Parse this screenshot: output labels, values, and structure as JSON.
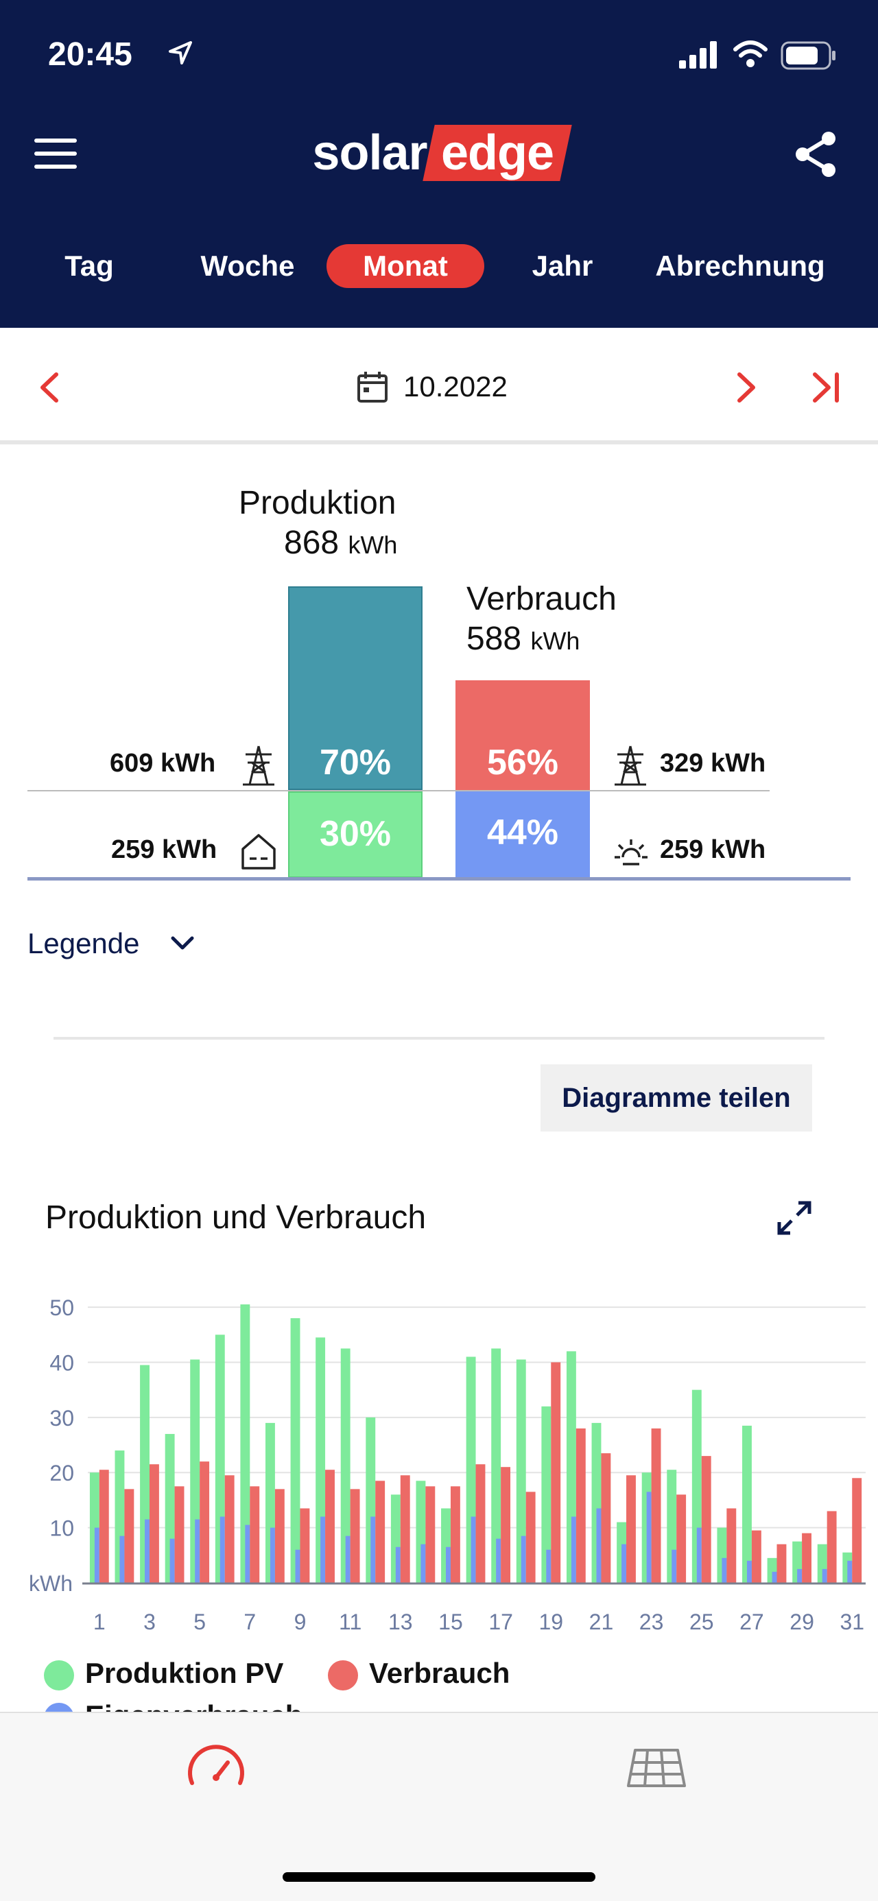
{
  "status": {
    "time": "20:45"
  },
  "header": {
    "logo_left": "solar",
    "logo_right": "edge"
  },
  "tabs": [
    {
      "label": "Tag",
      "active": false
    },
    {
      "label": "Woche",
      "active": false
    },
    {
      "label": "Monat",
      "active": true
    },
    {
      "label": "Jahr",
      "active": false
    },
    {
      "label": "Abrechnung",
      "active": false
    }
  ],
  "date_nav": {
    "date": "10.2022"
  },
  "summary": {
    "production": {
      "label": "Produktion",
      "value": "868",
      "unit": "kWh",
      "grid_pct": "70%",
      "self_pct": "30%",
      "grid_value": "609 kWh",
      "self_value": "259 kWh"
    },
    "consumption": {
      "label": "Verbrauch",
      "value": "588",
      "unit": "kWh",
      "grid_pct": "56%",
      "self_pct": "44%",
      "grid_value": "329 kWh",
      "self_value": "259 kWh"
    }
  },
  "legend_toggle": "Legende",
  "share_button": "Diagramme teilen",
  "chart_title": "Produktion und Verbrauch",
  "colors": {
    "header_bg": "#0c1a4b",
    "accent": "#e53935",
    "production_top": "#4599ab",
    "production_self": "#7eea9b",
    "consumption_top": "#ec6a66",
    "consumption_self": "#7498f3"
  },
  "chart_data": {
    "type": "bar",
    "x": [
      1,
      2,
      3,
      4,
      5,
      6,
      7,
      8,
      9,
      10,
      11,
      12,
      13,
      14,
      15,
      16,
      17,
      18,
      19,
      20,
      21,
      22,
      23,
      24,
      25,
      26,
      27,
      28,
      29,
      30,
      31
    ],
    "tick_labels": [
      "1",
      "3",
      "5",
      "7",
      "9",
      "11",
      "13",
      "15",
      "17",
      "19",
      "21",
      "23",
      "25",
      "27",
      "29",
      "31"
    ],
    "ylabel": "kWh",
    "yticks": [
      10,
      20,
      30,
      40,
      50
    ],
    "ylim": [
      0,
      52
    ],
    "grid": true,
    "legend_position": "bottom",
    "series": [
      {
        "name": "Produktion PV",
        "color": "#7eea9b",
        "values": [
          20,
          24,
          39.5,
          27,
          40.5,
          45,
          50.5,
          29,
          48,
          44.5,
          42.5,
          30,
          16,
          18.5,
          13.5,
          41,
          42.5,
          40.5,
          32,
          42,
          29,
          11,
          20,
          20.5,
          35,
          10,
          28.5,
          4.5,
          7.5,
          7,
          5.5
        ]
      },
      {
        "name": "Verbrauch",
        "color": "#ec6a66",
        "values": [
          20.5,
          17,
          21.5,
          17.5,
          22,
          19.5,
          17.5,
          17,
          13.5,
          20.5,
          17,
          18.5,
          19.5,
          17.5,
          17.5,
          21.5,
          21,
          16.5,
          40,
          28,
          23.5,
          19.5,
          28,
          16,
          23,
          13.5,
          9.5,
          7,
          9,
          13,
          19
        ]
      },
      {
        "name": "Eigenverbrauch",
        "color": "#7498f3",
        "values": [
          10,
          8.5,
          11.5,
          8,
          11.5,
          12,
          10.5,
          10,
          6,
          12,
          8.5,
          12,
          6.5,
          7,
          6.5,
          12,
          8,
          8.5,
          6,
          12,
          13.5,
          7,
          16.5,
          6,
          10,
          4.5,
          4,
          2,
          2.5,
          2.5,
          4
        ]
      }
    ]
  }
}
